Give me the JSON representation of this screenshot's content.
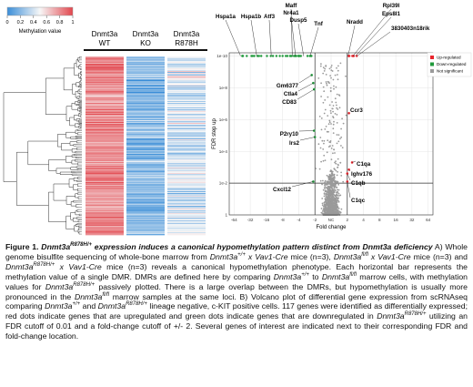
{
  "panel_a": {
    "colorbar": {
      "label": "Methylation value",
      "ticks": [
        "0",
        "0.2",
        "0.4",
        "0.6",
        "0.8",
        "1"
      ],
      "low_color": "#3b8ed8",
      "mid_color": "#f7f7f7",
      "high_color": "#e2474e"
    },
    "columns": [
      {
        "line1": "Dnmt3a",
        "line2": "WT"
      },
      {
        "line1": "Dnmt3a",
        "line2": "KO"
      },
      {
        "line1": "Dnmt3a",
        "line2": "R878H"
      }
    ]
  },
  "chart_data": {
    "type": "scatter",
    "xlabel": "Fold change",
    "ylabel": "FDR step up",
    "x_ticks": [
      "-64",
      "-32",
      "-16",
      "-8",
      "-4",
      "-2",
      "NC",
      "2",
      "4",
      "8",
      "16",
      "32",
      "64"
    ],
    "x_tick_values": [
      -6,
      -5,
      -4,
      -3,
      -2,
      -1,
      0,
      1,
      2,
      3,
      4,
      5,
      6
    ],
    "xlim": [
      -6.3,
      6.3
    ],
    "y_ticks": [
      "1e-10",
      "1e-8",
      "1e-6",
      "1e-4",
      "1e-2",
      "1"
    ],
    "y_tick_values": [
      10,
      8,
      6,
      4,
      2,
      0
    ],
    "ylim": [
      0,
      10.2
    ],
    "fdr_threshold": 0.01,
    "fold_change_cutoff": 2,
    "legend": [
      {
        "label": "Up-regulated",
        "color": "#e8242c"
      },
      {
        "label": "Down-regulated",
        "color": "#1f9a3b"
      },
      {
        "label": "Not significant",
        "color": "#9a9a9a"
      }
    ],
    "annotations": [
      {
        "label": "Hspa1a",
        "x": -5.6,
        "y": 10
      },
      {
        "label": "Hspa1b",
        "x": -4.6,
        "y": 10
      },
      {
        "label": "Atf3",
        "x": -3.7,
        "y": 10
      },
      {
        "label": "Maff",
        "x": -2.4,
        "y": 10
      },
      {
        "label": "Nr4a1",
        "x": -2.2,
        "y": 10
      },
      {
        "label": "Dusp5",
        "x": -1.7,
        "y": 10
      },
      {
        "label": "Tnf",
        "x": -1.3,
        "y": 10
      },
      {
        "label": "Nradd",
        "x": 1.05,
        "y": 10
      },
      {
        "label": "Rpl39l",
        "x": 1.35,
        "y": 10
      },
      {
        "label": "Eps8l1",
        "x": 1.5,
        "y": 10
      },
      {
        "label": "3830403n18rik",
        "x": 1.6,
        "y": 10
      },
      {
        "label": "Gm6377",
        "x": -1.2,
        "y": 8.8
      },
      {
        "label": "Ctla4",
        "x": -1.1,
        "y": 8.3
      },
      {
        "label": "CD83",
        "x": -1.05,
        "y": 7.9
      },
      {
        "label": "Ccr3",
        "x": 1.1,
        "y": 6.4
      },
      {
        "label": "P2ry10",
        "x": -1.05,
        "y": 5.3
      },
      {
        "label": "Irs2",
        "x": -1.0,
        "y": 4.9
      },
      {
        "label": "C1qa",
        "x": 1.3,
        "y": 3.3
      },
      {
        "label": "Ighv176",
        "x": 1.1,
        "y": 2.85
      },
      {
        "label": "C1qb",
        "x": 1.0,
        "y": 2.6
      },
      {
        "label": "Cxcl12",
        "x": -1.1,
        "y": 2.1
      },
      {
        "label": "C1qc",
        "x": 1.0,
        "y": 2.1
      }
    ]
  },
  "caption": {
    "fig_label": "Figure 1.",
    "title": [
      {
        "t": "Dnmt3a"
      },
      {
        "t": "R878H/+",
        "sup": true
      },
      {
        "t": " expression induces a canonical hypomethylation pattern distinct from Dnmt3a deficiency"
      }
    ],
    "body": [
      {
        "t": " A) Whole genome bisulfite sequencing of whole-bone marrow from "
      },
      {
        "t": "Dnmt3a",
        "i": true
      },
      {
        "t": "+/+",
        "sup": true,
        "i": true
      },
      {
        "t": " x Vav1-Cre",
        "i": true
      },
      {
        "t": " mice (n=3), "
      },
      {
        "t": "Dnmt3a",
        "i": true
      },
      {
        "t": "fl/fl",
        "sup": true,
        "i": true
      },
      {
        "t": " x Vav1-Cre",
        "i": true
      },
      {
        "t": " mice (n=3) and "
      },
      {
        "t": "Dnmt3a",
        "i": true
      },
      {
        "t": "R878H/+",
        "sup": true,
        "i": true
      },
      {
        "t": " x Vav1-Cre",
        "i": true
      },
      {
        "t": " mice (n=3) reveals a canonical hypomethylation phenotype. Each horizontal bar represents the methylation value of a single DMR. DMRs are defined here by comparing "
      },
      {
        "t": "Dnmt3a",
        "i": true
      },
      {
        "t": "+/+",
        "sup": true,
        "i": true
      },
      {
        "t": " to "
      },
      {
        "t": "Dnmt3a",
        "i": true
      },
      {
        "t": "fl/fl",
        "sup": true,
        "i": true
      },
      {
        "t": " marrow cells, with methylation values for "
      },
      {
        "t": "Dnmt3a",
        "i": true
      },
      {
        "t": "R878H/+",
        "sup": true,
        "i": true
      },
      {
        "t": " passively plotted. There is a large overlap between the DMRs, but hypomethylation is usually more pronounced in the "
      },
      {
        "t": "Dnmt3a",
        "i": true
      },
      {
        "t": "fl/fl",
        "sup": true,
        "i": true
      },
      {
        "t": " marrow samples at the same loci. B) Volcano plot of differential gene expression from scRNAseq comparing "
      },
      {
        "t": "Dnmt3a",
        "i": true
      },
      {
        "t": "+/+",
        "sup": true,
        "i": true
      },
      {
        "t": " and "
      },
      {
        "t": "Dnmt3a",
        "i": true
      },
      {
        "t": "R878H/+",
        "sup": true,
        "i": true
      },
      {
        "t": " lineage negative, c-KIT positive cells. 117 genes were identified as differentially expressed; red dots indicate genes that are upregulated and green dots indicate genes that are downregulated in "
      },
      {
        "t": "Dnmt3a",
        "i": true
      },
      {
        "t": "R878H/+",
        "sup": true,
        "i": true
      },
      {
        "t": " utilizing an FDR cutoff of 0.01 and a fold-change cutoff of +/- 2. Several genes of interest are indicated next to their corresponding FDR and fold-change location."
      }
    ]
  }
}
